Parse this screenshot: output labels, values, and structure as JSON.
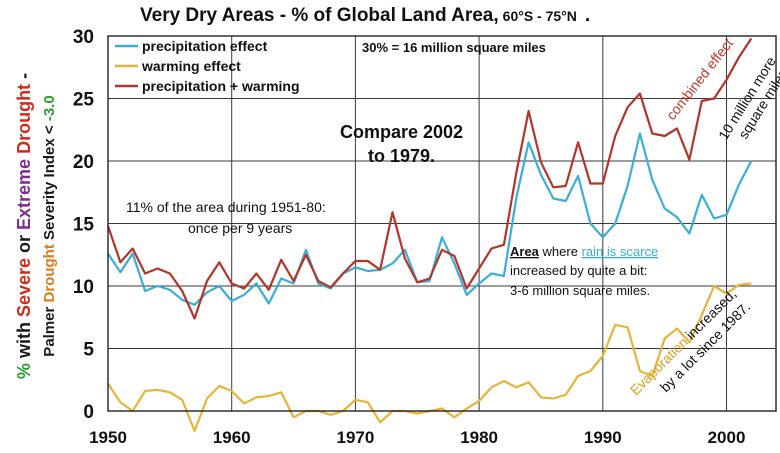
{
  "chart_data": {
    "type": "line",
    "title": {
      "main": "Very Dry Areas - % of Global Land Area,",
      "range": "60°S - 75°N",
      "dot": "."
    },
    "ylabel": {
      "line1": [
        {
          "text": "% ",
          "color": "#2e9e2e"
        },
        {
          "text": "with ",
          "color": "#1a1a1a"
        },
        {
          "text": "Severe ",
          "color": "#d02a1e"
        },
        {
          "text": "or ",
          "color": "#1a1a1a"
        },
        {
          "text": "Extreme ",
          "color": "#7b2d8e"
        },
        {
          "text": "Drought",
          "color": "#d02a1e"
        },
        {
          "text": " -",
          "color": "#1a1a1a"
        }
      ],
      "line2": [
        {
          "text": "Palmer ",
          "color": "#1a1a1a"
        },
        {
          "text": "Drought ",
          "color": "#e07b1a"
        },
        {
          "text": "Severity Index < ",
          "color": "#1a1a1a"
        },
        {
          "text": "-3.0",
          "color": "#2e9e2e"
        }
      ]
    },
    "xlim": [
      1950,
      2004
    ],
    "ylim": [
      0,
      30
    ],
    "x_ticks": [
      1950,
      1960,
      1970,
      1980,
      1990,
      2000
    ],
    "y_ticks": [
      0,
      5,
      10,
      15,
      20,
      25,
      30
    ],
    "grid": true,
    "legend_position": "top-left",
    "x": [
      1950,
      1951,
      1952,
      1953,
      1954,
      1955,
      1956,
      1957,
      1958,
      1959,
      1960,
      1961,
      1962,
      1963,
      1964,
      1965,
      1966,
      1967,
      1968,
      1969,
      1970,
      1971,
      1972,
      1973,
      1974,
      1975,
      1976,
      1977,
      1978,
      1979,
      1980,
      1981,
      1982,
      1983,
      1984,
      1985,
      1986,
      1987,
      1988,
      1989,
      1990,
      1991,
      1992,
      1993,
      1994,
      1995,
      1996,
      1997,
      1998,
      1999,
      2000,
      2001,
      2002
    ],
    "series": [
      {
        "name": "precipitation effect",
        "color": "#3aaed8",
        "values": [
          12.6,
          11.1,
          12.6,
          9.6,
          10.0,
          9.7,
          8.9,
          8.5,
          9.5,
          10.0,
          8.8,
          9.3,
          10.2,
          8.6,
          10.6,
          10.2,
          12.9,
          10.2,
          9.8,
          11.0,
          11.5,
          11.2,
          11.3,
          11.8,
          12.9,
          10.3,
          10.4,
          13.9,
          11.8,
          9.3,
          10.2,
          11.0,
          10.8,
          17.0,
          21.5,
          18.9,
          17.0,
          16.8,
          18.8,
          15.0,
          13.9,
          15.0,
          18.0,
          22.2,
          18.5,
          16.2,
          15.5,
          14.2,
          17.3,
          15.4,
          15.7,
          18.1,
          20.0
        ]
      },
      {
        "name": "warming effect",
        "color": "#e8b33a",
        "values": [
          2.2,
          0.7,
          0.0,
          1.6,
          1.7,
          1.5,
          0.9,
          -1.6,
          1.0,
          2.0,
          1.6,
          0.6,
          1.1,
          1.2,
          1.5,
          -0.5,
          0.0,
          0.0,
          -0.3,
          0.0,
          0.9,
          0.7,
          -0.9,
          0.0,
          0.0,
          -0.2,
          0.0,
          0.2,
          -0.5,
          0.2,
          0.8,
          1.9,
          2.4,
          1.9,
          2.3,
          1.1,
          1.0,
          1.3,
          2.8,
          3.2,
          4.4,
          6.9,
          6.7,
          3.2,
          2.8,
          5.8,
          6.6,
          5.5,
          7.7,
          10.0,
          9.4,
          10.1,
          10.2
        ]
      },
      {
        "name": "precipitation + warming",
        "color": "#b5342a",
        "values": [
          14.8,
          11.9,
          13.0,
          11.0,
          11.4,
          11.0,
          9.6,
          7.4,
          10.4,
          11.9,
          10.2,
          9.8,
          11.0,
          9.7,
          12.1,
          10.4,
          12.5,
          10.4,
          9.9,
          11.0,
          12.0,
          12.0,
          11.3,
          15.9,
          12.2,
          10.3,
          10.6,
          12.9,
          12.4,
          9.8,
          11.4,
          13.0,
          13.3,
          19.0,
          24.0,
          19.9,
          17.9,
          18.0,
          21.5,
          18.2,
          18.2,
          22.0,
          24.3,
          25.4,
          22.2,
          22.0,
          22.6,
          20.1,
          24.8,
          25.0,
          26.5,
          28.3,
          29.8
        ]
      }
    ],
    "annotations": {
      "note_30pct": "30% = 16 million square miles",
      "compare_l1": "Compare 2002",
      "compare_l2": "to 1979.",
      "baseline_l1": "11% of the area during 1951-80:",
      "baseline_l2": "once per 9 years",
      "area_word": "Area",
      "area_mid": "where",
      "area_rain": "rain is scarce",
      "area_l2": "increased by quite a bit:",
      "area_l3": "3-6 million square miles.",
      "combined": "combined effect",
      "more_l1": "10 million more",
      "more_l2": "square miles",
      "evap_word": "Evaporation",
      "evap_rest": " increased,",
      "evap_l2": "by a lot since 1987."
    }
  }
}
